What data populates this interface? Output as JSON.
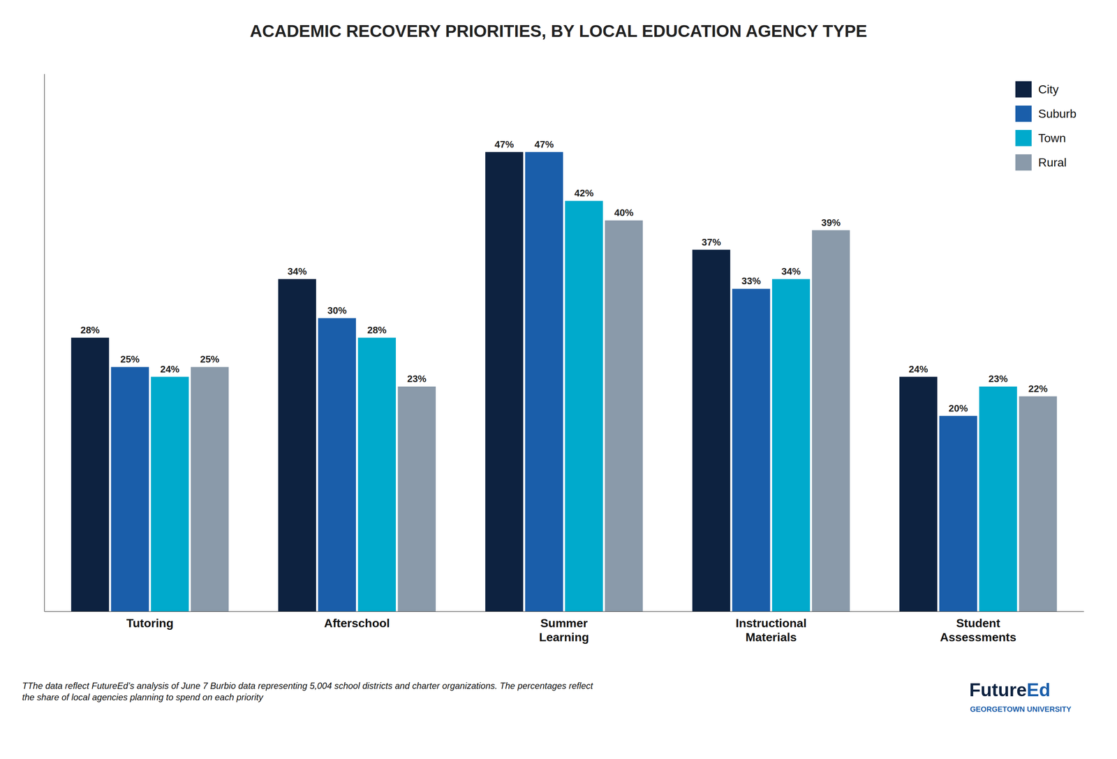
{
  "chart_data": {
    "type": "bar",
    "title": "ACADEMIC RECOVERY PRIORITIES, BY LOCAL EDUCATION AGENCY TYPE",
    "categories": [
      "Tutoring",
      "Afterschool",
      "Summer\nLearning",
      "Instructional\nMaterials",
      "Student\nAssessments"
    ],
    "series": [
      {
        "name": "City",
        "color": "#0d2240",
        "values": [
          28,
          34,
          47,
          37,
          24
        ],
        "value_labels": [
          "28%",
          "34%",
          "47%",
          "37%",
          "24%"
        ]
      },
      {
        "name": "Suburb",
        "color": "#1a5eaa",
        "values": [
          25,
          30,
          47,
          33,
          20
        ],
        "value_labels": [
          "25%",
          "30%",
          "47%",
          "33%",
          "20%"
        ]
      },
      {
        "name": "Town",
        "color": "#00aacc",
        "values": [
          24,
          28,
          42,
          34,
          23
        ],
        "value_labels": [
          "24%",
          "28%",
          "42%",
          "34%",
          "23%"
        ]
      },
      {
        "name": "Rural",
        "color": "#8a9aaa",
        "values": [
          25,
          23,
          40,
          39,
          22
        ],
        "value_labels": [
          "25%",
          "23%",
          "40%",
          "39%",
          "22%"
        ]
      }
    ],
    "ylim": [
      0,
      55
    ],
    "grid": false,
    "legend": "upper right",
    "data_labels": true,
    "tick_labels": "x",
    "annotations": [
      "TThe data reflect FutureEd’s analysis of June 7 Burbio data representing 5,004 school districts and charter organizations. The percentages reflect\nthe share of local agencies planning to spend on each priority",
      "Future",
      "Ed",
      "GEORGETOWN UNIVERSITY"
    ]
  }
}
